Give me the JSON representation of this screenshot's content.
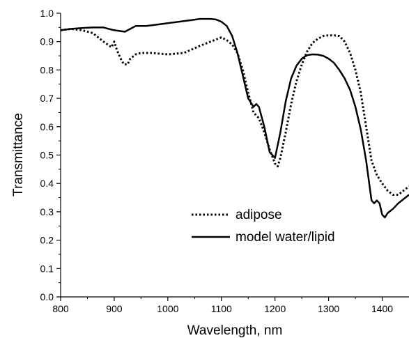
{
  "chart_data": {
    "type": "line",
    "title": "",
    "xlabel": "Wavelength, nm",
    "ylabel": "Transmittance",
    "xlim": [
      800,
      1450
    ],
    "ylim": [
      0.0,
      1.0
    ],
    "xticks": [
      800,
      900,
      1000,
      1100,
      1200,
      1300,
      1400
    ],
    "yticks": [
      0.0,
      0.1,
      0.2,
      0.3,
      0.4,
      0.5,
      0.6,
      0.7,
      0.8,
      0.9,
      1.0
    ],
    "xtick_labels": [
      "800",
      "900",
      "1000",
      "1100",
      "1200",
      "1300",
      "1400"
    ],
    "ytick_labels": [
      "0.0",
      "0.1",
      "0.2",
      "0.3",
      "0.4",
      "0.5",
      "0.6",
      "0.7",
      "0.8",
      "0.9",
      "1.0"
    ],
    "grid": false,
    "legend_position": "lower-right",
    "series": [
      {
        "name": "adipose",
        "style": "dotted",
        "color": "#000000",
        "x": [
          800,
          820,
          840,
          860,
          880,
          895,
          900,
          905,
          912,
          918,
          925,
          930,
          940,
          950,
          970,
          1000,
          1030,
          1060,
          1080,
          1100,
          1110,
          1120,
          1130,
          1140,
          1150,
          1160,
          1165,
          1170,
          1180,
          1190,
          1200,
          1205,
          1210,
          1220,
          1230,
          1240,
          1250,
          1260,
          1270,
          1280,
          1290,
          1300,
          1310,
          1320,
          1330,
          1340,
          1350,
          1360,
          1370,
          1380,
          1390,
          1400,
          1410,
          1420,
          1430,
          1440,
          1450
        ],
        "y": [
          0.94,
          0.945,
          0.94,
          0.93,
          0.9,
          0.88,
          0.9,
          0.87,
          0.84,
          0.82,
          0.82,
          0.84,
          0.855,
          0.86,
          0.86,
          0.855,
          0.86,
          0.885,
          0.9,
          0.915,
          0.905,
          0.89,
          0.86,
          0.8,
          0.72,
          0.65,
          0.64,
          0.63,
          0.58,
          0.52,
          0.47,
          0.46,
          0.49,
          0.58,
          0.68,
          0.76,
          0.82,
          0.865,
          0.895,
          0.91,
          0.92,
          0.922,
          0.922,
          0.92,
          0.9,
          0.86,
          0.8,
          0.72,
          0.6,
          0.48,
          0.43,
          0.4,
          0.375,
          0.36,
          0.36,
          0.375,
          0.39
        ]
      },
      {
        "name": "model water/lipid",
        "style": "solid",
        "color": "#000000",
        "x": [
          800,
          820,
          840,
          860,
          880,
          900,
          920,
          930,
          940,
          960,
          980,
          1000,
          1020,
          1040,
          1060,
          1070,
          1080,
          1090,
          1100,
          1110,
          1120,
          1130,
          1140,
          1150,
          1160,
          1165,
          1170,
          1180,
          1190,
          1200,
          1210,
          1220,
          1230,
          1240,
          1250,
          1260,
          1270,
          1280,
          1290,
          1300,
          1310,
          1320,
          1330,
          1340,
          1350,
          1360,
          1370,
          1380,
          1385,
          1390,
          1395,
          1400,
          1405,
          1410,
          1420,
          1430,
          1440,
          1450
        ],
        "y": [
          0.94,
          0.945,
          0.948,
          0.95,
          0.95,
          0.94,
          0.935,
          0.945,
          0.955,
          0.955,
          0.96,
          0.965,
          0.97,
          0.975,
          0.98,
          0.98,
          0.98,
          0.978,
          0.97,
          0.955,
          0.92,
          0.86,
          0.78,
          0.7,
          0.67,
          0.68,
          0.67,
          0.6,
          0.51,
          0.49,
          0.58,
          0.69,
          0.77,
          0.815,
          0.84,
          0.852,
          0.855,
          0.854,
          0.85,
          0.84,
          0.825,
          0.8,
          0.77,
          0.73,
          0.67,
          0.59,
          0.48,
          0.34,
          0.33,
          0.34,
          0.33,
          0.29,
          0.28,
          0.295,
          0.31,
          0.33,
          0.345,
          0.36
        ]
      }
    ]
  }
}
